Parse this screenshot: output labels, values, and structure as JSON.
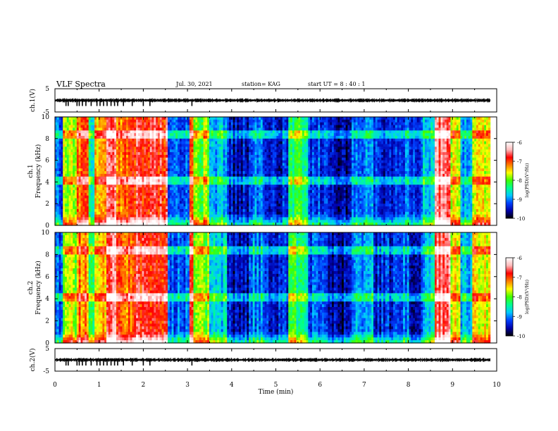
{
  "header": {
    "title": "VLF Spectra",
    "date": "Jul. 30, 2021",
    "station": "station= KAG",
    "start_ut": "start UT =  8 : 40 : 1"
  },
  "colors": {
    "colormap": [
      "#000000",
      "#0000aa",
      "#0040ff",
      "#00c8ff",
      "#00ff90",
      "#40ff00",
      "#ffff00",
      "#ff8000",
      "#ff0000",
      "#ffbaba",
      "#ffffff"
    ]
  },
  "chart_data": [
    {
      "type": "line",
      "panel": "ch1-waveform",
      "ylabel": "ch.1(V)",
      "ylim": [
        -5,
        5
      ],
      "yticks": [
        "5",
        "-5"
      ]
    },
    {
      "type": "heatmap",
      "panel": "ch1-spectrogram",
      "ylabel_top": "ch.1",
      "ylabel": "Frequency (kHz)",
      "ylim": [
        0,
        10
      ],
      "yticks": [
        "0",
        "2",
        "4",
        "6",
        "8",
        "10"
      ],
      "colorbar": {
        "label": "log(PSD)(V²/Hz)",
        "range": [
          -10,
          -6
        ],
        "ticks": [
          "-6",
          "-7",
          "-8",
          "-9",
          "-10"
        ]
      }
    },
    {
      "type": "heatmap",
      "panel": "ch2-spectrogram",
      "ylabel_top": "ch.2",
      "ylabel": "Frequency (kHz)",
      "ylim": [
        0,
        10
      ],
      "yticks": [
        "0",
        "2",
        "4",
        "6",
        "8",
        "10"
      ],
      "colorbar": {
        "label": "log(PSD)(V²/Hz)",
        "range": [
          -10,
          -6
        ],
        "ticks": [
          "-6",
          "-7",
          "-8",
          "-9",
          "-10"
        ]
      }
    },
    {
      "type": "line",
      "panel": "ch2-waveform",
      "ylabel": "ch.2(V)",
      "ylim": [
        -5,
        5
      ],
      "yticks": [
        "5",
        "-5"
      ]
    }
  ],
  "xaxis": {
    "label": "Time (min)",
    "range": [
      0,
      10
    ],
    "ticks": [
      "0",
      "1",
      "2",
      "3",
      "4",
      "5",
      "6",
      "7",
      "8",
      "9",
      "10"
    ]
  },
  "segments": [
    {
      "t0": 0.0,
      "t1": 0.2,
      "level": 2.2
    },
    {
      "t0": 0.2,
      "t1": 0.5,
      "level": 5.5
    },
    {
      "t0": 0.5,
      "t1": 0.75,
      "level": 7.0
    },
    {
      "t0": 0.75,
      "t1": 0.9,
      "level": 4.0
    },
    {
      "t0": 0.9,
      "t1": 1.15,
      "level": 6.5
    },
    {
      "t0": 1.15,
      "t1": 1.4,
      "level": 8.5
    },
    {
      "t0": 1.4,
      "t1": 1.85,
      "level": 7.2
    },
    {
      "t0": 1.85,
      "t1": 2.55,
      "level": 8.0
    },
    {
      "t0": 2.55,
      "t1": 3.05,
      "level": 2.2
    },
    {
      "t0": 3.05,
      "t1": 3.15,
      "level": 7.5
    },
    {
      "t0": 3.15,
      "t1": 3.5,
      "level": 5.2
    },
    {
      "t0": 3.5,
      "t1": 3.9,
      "level": 3.0
    },
    {
      "t0": 3.9,
      "t1": 4.4,
      "level": 1.2
    },
    {
      "t0": 4.4,
      "t1": 4.75,
      "level": 2.5
    },
    {
      "t0": 4.75,
      "t1": 5.3,
      "level": 1.5
    },
    {
      "t0": 5.3,
      "t1": 5.75,
      "level": 4.2
    },
    {
      "t0": 5.75,
      "t1": 6.2,
      "level": 2.0
    },
    {
      "t0": 6.2,
      "t1": 6.7,
      "level": 0.9
    },
    {
      "t0": 6.7,
      "t1": 7.2,
      "level": 2.6
    },
    {
      "t0": 7.2,
      "t1": 7.7,
      "level": 1.6
    },
    {
      "t0": 7.7,
      "t1": 8.0,
      "level": 2.2
    },
    {
      "t0": 8.0,
      "t1": 8.35,
      "level": 1.4
    },
    {
      "t0": 8.35,
      "t1": 8.6,
      "level": 3.0
    },
    {
      "t0": 8.6,
      "t1": 8.95,
      "level": 8.5
    },
    {
      "t0": 8.95,
      "t1": 9.2,
      "level": 6.0
    },
    {
      "t0": 9.2,
      "t1": 9.45,
      "level": 3.0
    },
    {
      "t0": 9.45,
      "t1": 9.85,
      "level": 6.0
    }
  ]
}
